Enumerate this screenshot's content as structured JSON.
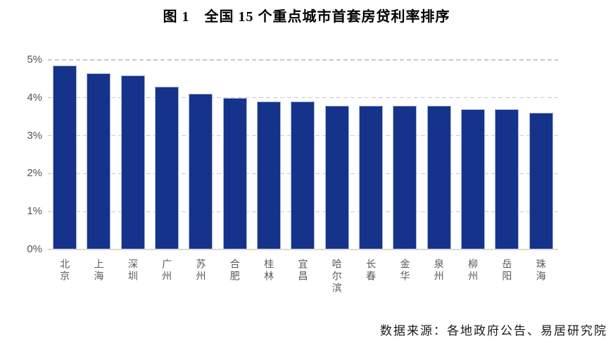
{
  "title": "图 1　全国 15 个重点城市首套房贷利率排序",
  "source_note": "数据来源：各地政府公告、易居研究院",
  "colors": {
    "bar_fill": "#15338A",
    "bar_edge": "#A9B7DC",
    "gridline": "#C9C9C9",
    "baseline": "#D9D9D9",
    "ytick_label": "#545454",
    "xtick_label": "#595959",
    "title_text": "#000000",
    "source_text": "#1A1A1A"
  },
  "chart_data": {
    "type": "bar",
    "title": "图 1　全国 15 个重点城市首套房贷利率排序",
    "categories": [
      "北京",
      "上海",
      "深圳",
      "广州",
      "苏州",
      "合肥",
      "桂林",
      "宜昌",
      "哈尔滨",
      "长春",
      "金华",
      "泉州",
      "柳州",
      "岳阳",
      "珠海"
    ],
    "values": [
      4.85,
      4.65,
      4.6,
      4.3,
      4.1,
      4.0,
      3.9,
      3.9,
      3.8,
      3.8,
      3.8,
      3.8,
      3.7,
      3.7,
      3.6
    ],
    "unit": "%",
    "xlabel": "",
    "ylabel": "",
    "ylim": [
      0,
      5
    ],
    "ytick_labels": [
      "0%",
      "1%",
      "2%",
      "3%",
      "4%",
      "5%"
    ],
    "grid": "horizontal-dashed",
    "legend": "none",
    "source": "数据来源：各地政府公告、易居研究院"
  }
}
